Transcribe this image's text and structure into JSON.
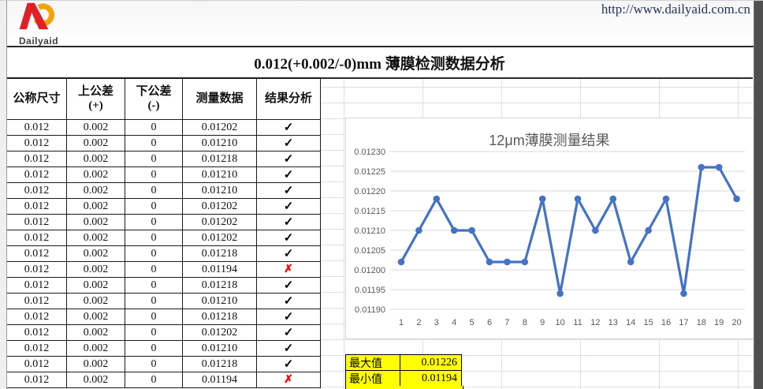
{
  "page": {
    "url": "http://www.dailyaid.com.cn",
    "logo_text": "Dailyaid",
    "logo_colors": {
      "red": "#e01f26",
      "orange": "#f0a30a"
    }
  },
  "report": {
    "title": "0.012(+0.002/-0)mm 薄膜检测数据分析"
  },
  "table": {
    "columns": [
      "公称尺寸",
      "上公差\n(+)",
      "下公差\n(-)",
      "测量数据",
      "结果分析"
    ],
    "result_symbols": {
      "pass": "✓",
      "fail": "✗"
    },
    "rows": [
      {
        "nominal": "0.012",
        "upper": "0.002",
        "lower": "0",
        "measured": "0.01202",
        "result": "pass"
      },
      {
        "nominal": "0.012",
        "upper": "0.002",
        "lower": "0",
        "measured": "0.01210",
        "result": "pass"
      },
      {
        "nominal": "0.012",
        "upper": "0.002",
        "lower": "0",
        "measured": "0.01218",
        "result": "pass"
      },
      {
        "nominal": "0.012",
        "upper": "0.002",
        "lower": "0",
        "measured": "0.01210",
        "result": "pass"
      },
      {
        "nominal": "0.012",
        "upper": "0.002",
        "lower": "0",
        "measured": "0.01210",
        "result": "pass"
      },
      {
        "nominal": "0.012",
        "upper": "0.002",
        "lower": "0",
        "measured": "0.01202",
        "result": "pass"
      },
      {
        "nominal": "0.012",
        "upper": "0.002",
        "lower": "0",
        "measured": "0.01202",
        "result": "pass"
      },
      {
        "nominal": "0.012",
        "upper": "0.002",
        "lower": "0",
        "measured": "0.01202",
        "result": "pass"
      },
      {
        "nominal": "0.012",
        "upper": "0.002",
        "lower": "0",
        "measured": "0.01218",
        "result": "pass"
      },
      {
        "nominal": "0.012",
        "upper": "0.002",
        "lower": "0",
        "measured": "0.01194",
        "result": "fail"
      },
      {
        "nominal": "0.012",
        "upper": "0.002",
        "lower": "0",
        "measured": "0.01218",
        "result": "pass"
      },
      {
        "nominal": "0.012",
        "upper": "0.002",
        "lower": "0",
        "measured": "0.01210",
        "result": "pass"
      },
      {
        "nominal": "0.012",
        "upper": "0.002",
        "lower": "0",
        "measured": "0.01218",
        "result": "pass"
      },
      {
        "nominal": "0.012",
        "upper": "0.002",
        "lower": "0",
        "measured": "0.01202",
        "result": "pass"
      },
      {
        "nominal": "0.012",
        "upper": "0.002",
        "lower": "0",
        "measured": "0.01210",
        "result": "pass"
      },
      {
        "nominal": "0.012",
        "upper": "0.002",
        "lower": "0",
        "measured": "0.01218",
        "result": "pass"
      },
      {
        "nominal": "0.012",
        "upper": "0.002",
        "lower": "0",
        "measured": "0.01194",
        "result": "fail"
      }
    ]
  },
  "summary": {
    "rows": [
      {
        "label": "最大值",
        "value": "0.01226"
      },
      {
        "label": "最小值",
        "value": "0.01194"
      }
    ]
  },
  "chart_data": {
    "type": "line",
    "title": "12μm薄膜测量结果",
    "x": [
      1,
      2,
      3,
      4,
      5,
      6,
      7,
      8,
      9,
      10,
      11,
      12,
      13,
      14,
      15,
      16,
      17,
      18,
      19,
      20
    ],
    "series": [
      {
        "name": "测量数据",
        "values": [
          0.01202,
          0.0121,
          0.01218,
          0.0121,
          0.0121,
          0.01202,
          0.01202,
          0.01202,
          0.01218,
          0.01194,
          0.01218,
          0.0121,
          0.01218,
          0.01202,
          0.0121,
          0.01218,
          0.01194,
          0.01226,
          0.01226,
          0.01218
        ],
        "color": "#4472C4"
      }
    ],
    "xlabel": "",
    "ylabel": "",
    "ylim": [
      0.0119,
      0.0123
    ],
    "ytick_labels": [
      "0.01230",
      "0.01225",
      "0.01220",
      "0.01215",
      "0.01210",
      "0.01205",
      "0.01200",
      "0.01195",
      "0.01190"
    ],
    "xtick_labels": [
      "1",
      "2",
      "3",
      "4",
      "5",
      "6",
      "7",
      "8",
      "9",
      "10",
      "11",
      "12",
      "13",
      "14",
      "15",
      "16",
      "17",
      "18",
      "19",
      "20"
    ],
    "grid": true,
    "legend_position": "none",
    "text_color": "#595959",
    "gridline_color": "#d9d9d9"
  }
}
